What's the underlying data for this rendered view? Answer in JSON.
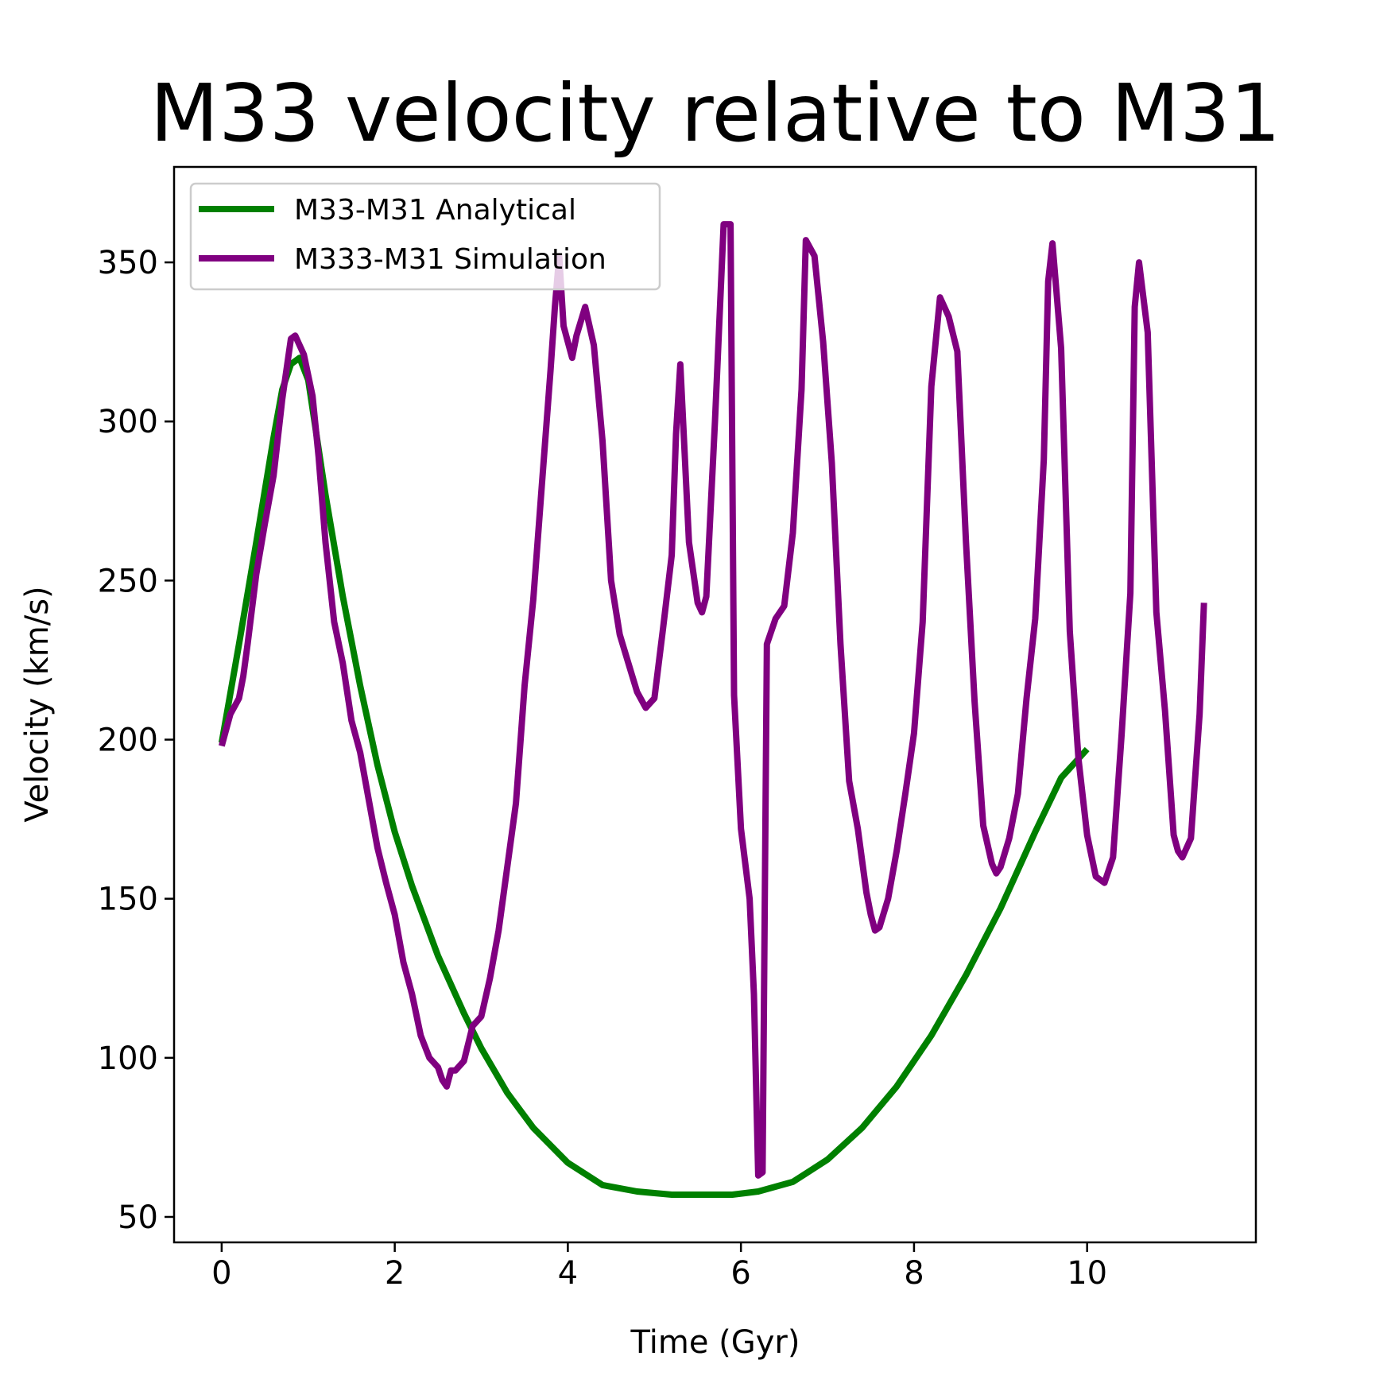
{
  "chart_data": {
    "type": "line",
    "title": "M33 velocity relative to M31",
    "xlabel": "Time (Gyr)",
    "ylabel": "Velocity (km/s)",
    "xlim": [
      -0.55,
      11.95
    ],
    "ylim": [
      42,
      380
    ],
    "xticks": [
      0,
      2,
      4,
      6,
      8,
      10
    ],
    "yticks": [
      50,
      100,
      150,
      200,
      250,
      300,
      350
    ],
    "xtick_labels": [
      "0",
      "2",
      "4",
      "6",
      "8",
      "10"
    ],
    "ytick_labels": [
      "50",
      "100",
      "150",
      "200",
      "250",
      "300",
      "350"
    ],
    "grid": false,
    "legend_position": "top-left",
    "series": [
      {
        "name": "M33-M31 Analytical",
        "color": "#008000",
        "x": [
          0,
          0.2,
          0.4,
          0.6,
          0.7,
          0.8,
          0.9,
          1.0,
          1.2,
          1.4,
          1.6,
          1.8,
          2.0,
          2.2,
          2.5,
          2.8,
          3.0,
          3.3,
          3.6,
          4.0,
          4.4,
          4.8,
          5.2,
          5.6,
          5.9,
          6.2,
          6.6,
          7.0,
          7.4,
          7.8,
          8.2,
          8.6,
          9.0,
          9.4,
          9.7,
          10.0
        ],
        "y": [
          199,
          230,
          262,
          295,
          310,
          318,
          320,
          313,
          277,
          245,
          217,
          192,
          171,
          154,
          132,
          114,
          103,
          89,
          78,
          67,
          60,
          58,
          57,
          57,
          57,
          58,
          61,
          68,
          78,
          91,
          107,
          126,
          147,
          171,
          188,
          197
        ]
      },
      {
        "name": "M333-M31 Simulation",
        "color": "#800080",
        "x": [
          0,
          0.1,
          0.2,
          0.25,
          0.3,
          0.4,
          0.5,
          0.6,
          0.7,
          0.8,
          0.85,
          0.95,
          1.05,
          1.12,
          1.2,
          1.3,
          1.4,
          1.5,
          1.6,
          1.7,
          1.8,
          1.9,
          2.0,
          2.1,
          2.2,
          2.3,
          2.4,
          2.5,
          2.55,
          2.6,
          2.65,
          2.7,
          2.8,
          2.9,
          3.0,
          3.1,
          3.2,
          3.3,
          3.4,
          3.5,
          3.6,
          3.7,
          3.8,
          3.85,
          3.9,
          3.95,
          4.05,
          4.1,
          4.2,
          4.3,
          4.4,
          4.5,
          4.6,
          4.7,
          4.8,
          4.9,
          5.0,
          5.1,
          5.2,
          5.25,
          5.3,
          5.4,
          5.5,
          5.55,
          5.6,
          5.7,
          5.8,
          5.88,
          5.92,
          6.0,
          6.1,
          6.15,
          6.2,
          6.25,
          6.3,
          6.4,
          6.5,
          6.6,
          6.7,
          6.75,
          6.85,
          6.95,
          7.05,
          7.15,
          7.25,
          7.35,
          7.45,
          7.5,
          7.55,
          7.6,
          7.7,
          7.8,
          7.9,
          8.0,
          8.1,
          8.2,
          8.3,
          8.4,
          8.5,
          8.6,
          8.7,
          8.8,
          8.9,
          8.95,
          9.0,
          9.1,
          9.2,
          9.3,
          9.4,
          9.5,
          9.55,
          9.6,
          9.7,
          9.8,
          9.9,
          10.0,
          10.1,
          10.2,
          10.3,
          10.4,
          10.5,
          10.55,
          10.6,
          10.7,
          10.8,
          10.9,
          11.0,
          11.05,
          11.1,
          11.2,
          11.3,
          11.35
        ],
        "y": [
          198,
          208,
          213,
          220,
          230,
          252,
          268,
          283,
          307,
          326,
          327,
          321,
          308,
          289,
          262,
          237,
          224,
          206,
          196,
          181,
          166,
          155,
          145,
          130,
          120,
          107,
          100,
          97,
          93,
          91,
          96,
          96,
          99,
          110,
          113,
          125,
          140,
          160,
          180,
          217,
          244,
          280,
          316,
          336,
          352,
          330,
          320,
          327,
          336,
          324,
          294,
          250,
          233,
          224,
          215,
          210,
          213,
          235,
          258,
          296,
          318,
          262,
          243,
          240,
          245,
          300,
          362,
          362,
          214,
          172,
          150,
          120,
          63,
          64,
          230,
          238,
          242,
          265,
          310,
          357,
          352,
          325,
          287,
          230,
          187,
          172,
          152,
          145,
          140,
          141,
          150,
          165,
          183,
          202,
          237,
          311,
          339,
          333,
          322,
          262,
          212,
          173,
          161,
          158,
          160,
          169,
          183,
          213,
          238,
          288,
          344,
          356,
          323,
          234,
          194,
          170,
          157,
          155,
          163,
          202,
          246,
          336,
          350,
          328,
          240,
          209,
          170,
          165,
          163,
          169,
          208,
          243
        ]
      }
    ]
  }
}
